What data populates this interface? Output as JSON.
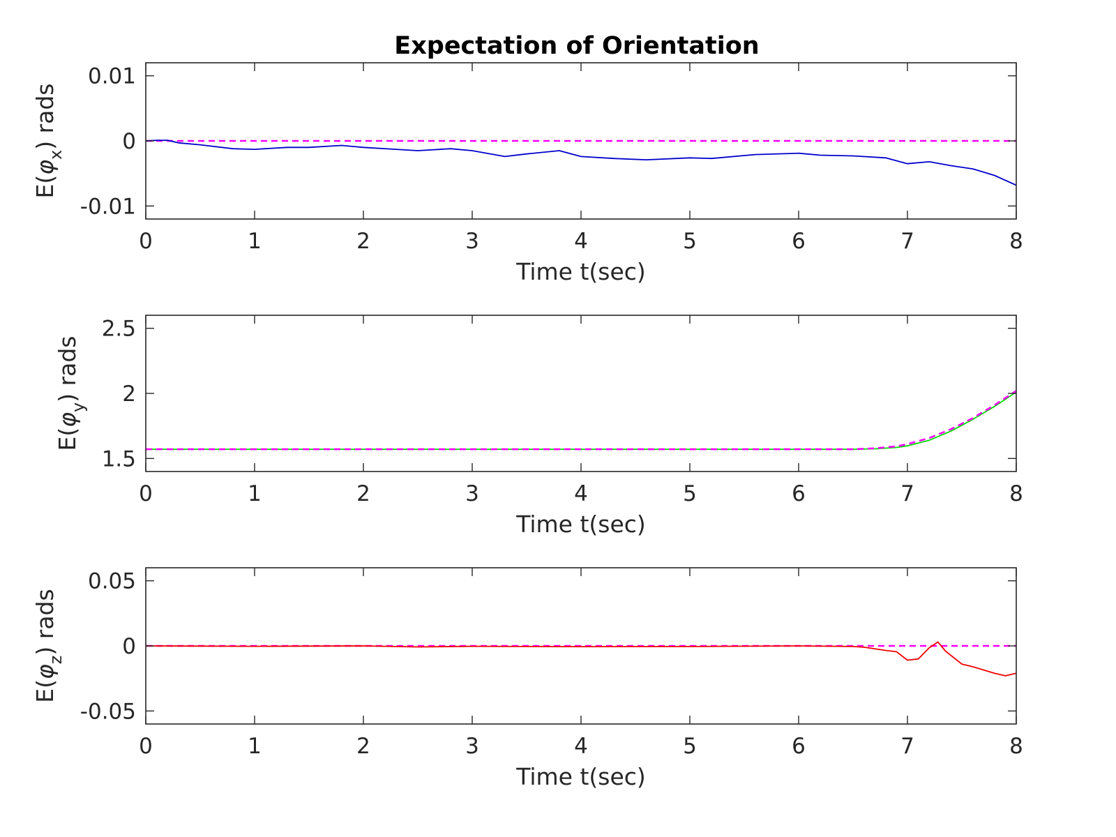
{
  "title": "Expectation of Orientation",
  "colors": {
    "axes": "#262626",
    "reference": "#ff00ff",
    "phi_x": "#0000cc",
    "phi_y": "#00dd00",
    "phi_z": "#ee0000"
  },
  "chart_data": [
    {
      "type": "line",
      "xlabel": "Time t(sec)",
      "ylabel_parts": {
        "pre": "E(",
        "sym": "φ",
        "sub": "x",
        "post": ") rads"
      },
      "xlim": [
        0,
        8
      ],
      "ylim": [
        -0.012,
        0.012
      ],
      "xticks": [
        0,
        1,
        2,
        3,
        4,
        5,
        6,
        7,
        8
      ],
      "xtick_labels": [
        "0",
        "1",
        "2",
        "3",
        "4",
        "5",
        "6",
        "7",
        "8"
      ],
      "yticks": [
        -0.01,
        0,
        0.01
      ],
      "ytick_labels": [
        "-0.01",
        "0",
        "0.01"
      ],
      "series": [
        {
          "role": "reference",
          "style": "dashed",
          "color": "#ff00ff",
          "x": [
            0,
            8
          ],
          "y": [
            0,
            0
          ]
        },
        {
          "role": "estimate",
          "style": "solid",
          "color": "#0000cc",
          "x": [
            0,
            0.1,
            0.2,
            0.3,
            0.5,
            0.8,
            1.0,
            1.3,
            1.5,
            1.8,
            2.0,
            2.3,
            2.5,
            2.8,
            3.0,
            3.3,
            3.5,
            3.8,
            4.0,
            4.3,
            4.6,
            5.0,
            5.2,
            5.6,
            6.0,
            6.2,
            6.5,
            6.8,
            7.0,
            7.2,
            7.4,
            7.6,
            7.8,
            8.0
          ],
          "y": [
            0,
            0.0001,
            0.0001,
            -0.0003,
            -0.0006,
            -0.0012,
            -0.0013,
            -0.001,
            -0.001,
            -0.0007,
            -0.001,
            -0.0013,
            -0.0015,
            -0.0012,
            -0.0015,
            -0.0024,
            -0.002,
            -0.0015,
            -0.0024,
            -0.0027,
            -0.0029,
            -0.0026,
            -0.0027,
            -0.0021,
            -0.0019,
            -0.0022,
            -0.0023,
            -0.0026,
            -0.0035,
            -0.0032,
            -0.0038,
            -0.0043,
            -0.0053,
            -0.0068
          ]
        }
      ]
    },
    {
      "type": "line",
      "xlabel": "Time t(sec)",
      "ylabel_parts": {
        "pre": "E(",
        "sym": "φ",
        "sub": "y",
        "post": ") rads"
      },
      "xlim": [
        0,
        8
      ],
      "ylim": [
        1.4,
        2.6
      ],
      "xticks": [
        0,
        1,
        2,
        3,
        4,
        5,
        6,
        7,
        8
      ],
      "xtick_labels": [
        "0",
        "1",
        "2",
        "3",
        "4",
        "5",
        "6",
        "7",
        "8"
      ],
      "yticks": [
        1.5,
        2,
        2.5
      ],
      "ytick_labels": [
        "1.5",
        "2",
        "2.5"
      ],
      "series": [
        {
          "role": "estimate",
          "style": "solid",
          "color": "#00dd00",
          "x": [
            0,
            6.5,
            6.7,
            6.9,
            7.0,
            7.2,
            7.4,
            7.6,
            7.8,
            8.0
          ],
          "y": [
            1.571,
            1.571,
            1.574,
            1.585,
            1.597,
            1.64,
            1.71,
            1.8,
            1.9,
            2.01
          ]
        },
        {
          "role": "reference",
          "style": "dashed",
          "color": "#ff00ff",
          "x": [
            0,
            6.5,
            6.7,
            6.9,
            7.0,
            7.2,
            7.4,
            7.6,
            7.8,
            8.0
          ],
          "y": [
            1.571,
            1.571,
            1.578,
            1.594,
            1.61,
            1.657,
            1.725,
            1.81,
            1.91,
            2.02
          ]
        }
      ]
    },
    {
      "type": "line",
      "xlabel": "Time t(sec)",
      "ylabel_parts": {
        "pre": "E(",
        "sym": "φ",
        "sub": "z",
        "post": ") rads"
      },
      "xlim": [
        0,
        8
      ],
      "ylim": [
        -0.06,
        0.06
      ],
      "xticks": [
        0,
        1,
        2,
        3,
        4,
        5,
        6,
        7,
        8
      ],
      "xtick_labels": [
        "0",
        "1",
        "2",
        "3",
        "4",
        "5",
        "6",
        "7",
        "8"
      ],
      "yticks": [
        -0.05,
        0,
        0.05
      ],
      "ytick_labels": [
        "-0.05",
        "0",
        "0.05"
      ],
      "series": [
        {
          "role": "reference",
          "style": "dashed",
          "color": "#ff00ff",
          "x": [
            0,
            8
          ],
          "y": [
            0,
            0
          ]
        },
        {
          "role": "estimate",
          "style": "solid",
          "color": "#ee0000",
          "x": [
            0,
            1.0,
            2.0,
            2.5,
            3.0,
            4.0,
            5.0,
            6.0,
            6.5,
            6.6,
            6.8,
            6.9,
            7.0,
            7.1,
            7.2,
            7.28,
            7.35,
            7.5,
            7.6,
            7.8,
            7.9,
            8.0
          ],
          "y": [
            0,
            -0.0003,
            0,
            -0.0008,
            -0.0003,
            -0.0006,
            -0.0005,
            0,
            -0.0005,
            -0.001,
            -0.0035,
            -0.0045,
            -0.011,
            -0.01,
            -0.0015,
            0.003,
            -0.004,
            -0.014,
            -0.016,
            -0.021,
            -0.023,
            -0.021
          ]
        }
      ]
    }
  ]
}
